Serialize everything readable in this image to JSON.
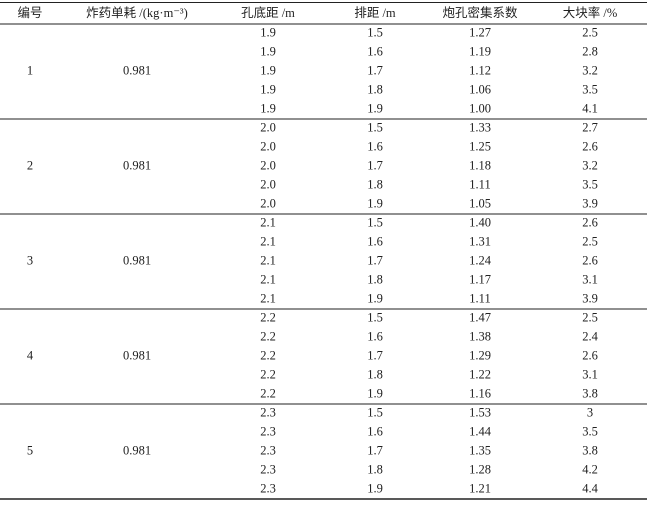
{
  "table": {
    "header": [
      "编号",
      "炸药单耗 /(kg·m⁻³)",
      "孔底距 /m",
      "排距 /m",
      "炮孔密集系数",
      "大块率 /%"
    ],
    "groups": [
      {
        "id": "1",
        "charge": "0.981",
        "rows": [
          [
            "1.9",
            "1.5",
            "1.27",
            "2.5"
          ],
          [
            "1.9",
            "1.6",
            "1.19",
            "2.8"
          ],
          [
            "1.9",
            "1.7",
            "1.12",
            "3.2"
          ],
          [
            "1.9",
            "1.8",
            "1.06",
            "3.5"
          ],
          [
            "1.9",
            "1.9",
            "1.00",
            "4.1"
          ]
        ]
      },
      {
        "id": "2",
        "charge": "0.981",
        "rows": [
          [
            "2.0",
            "1.5",
            "1.33",
            "2.7"
          ],
          [
            "2.0",
            "1.6",
            "1.25",
            "2.6"
          ],
          [
            "2.0",
            "1.7",
            "1.18",
            "3.2"
          ],
          [
            "2.0",
            "1.8",
            "1.11",
            "3.5"
          ],
          [
            "2.0",
            "1.9",
            "1.05",
            "3.9"
          ]
        ]
      },
      {
        "id": "3",
        "charge": "0.981",
        "rows": [
          [
            "2.1",
            "1.5",
            "1.40",
            "2.6"
          ],
          [
            "2.1",
            "1.6",
            "1.31",
            "2.5"
          ],
          [
            "2.1",
            "1.7",
            "1.24",
            "2.6"
          ],
          [
            "2.1",
            "1.8",
            "1.17",
            "3.1"
          ],
          [
            "2.1",
            "1.9",
            "1.11",
            "3.9"
          ]
        ]
      },
      {
        "id": "4",
        "charge": "0.981",
        "rows": [
          [
            "2.2",
            "1.5",
            "1.47",
            "2.5"
          ],
          [
            "2.2",
            "1.6",
            "1.38",
            "2.4"
          ],
          [
            "2.2",
            "1.7",
            "1.29",
            "2.6"
          ],
          [
            "2.2",
            "1.8",
            "1.22",
            "3.1"
          ],
          [
            "2.2",
            "1.9",
            "1.16",
            "3.8"
          ]
        ]
      },
      {
        "id": "5",
        "charge": "0.981",
        "rows": [
          [
            "2.3",
            "1.5",
            "1.53",
            "3"
          ],
          [
            "2.3",
            "1.6",
            "1.44",
            "3.5"
          ],
          [
            "2.3",
            "1.7",
            "1.35",
            "3.8"
          ],
          [
            "2.3",
            "1.8",
            "1.28",
            "4.2"
          ],
          [
            "2.3",
            "1.9",
            "1.21",
            "4.4"
          ]
        ]
      }
    ]
  }
}
